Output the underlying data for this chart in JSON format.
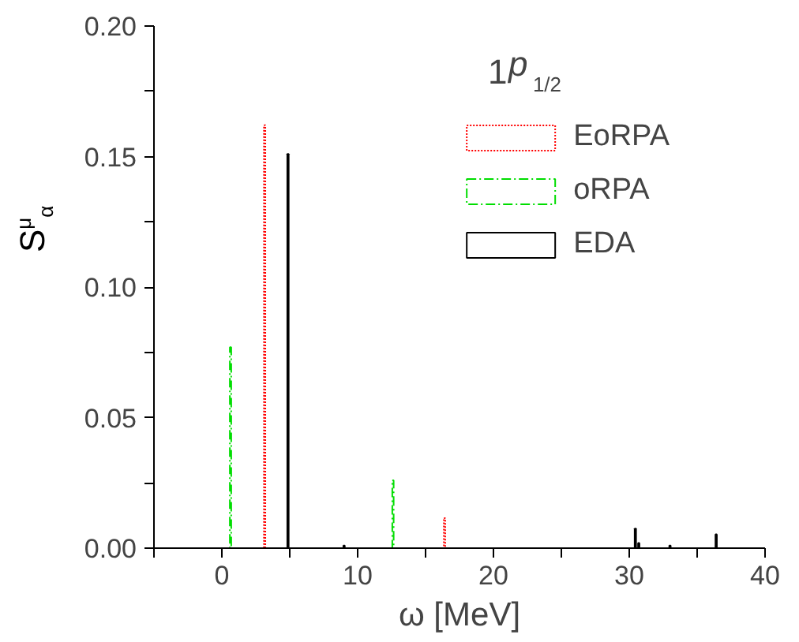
{
  "chart_data": {
    "type": "bar",
    "title": "1p$_{1/2}$",
    "xlabel": "ω [MeV]",
    "ylabel": "S$^{μ}$$_{α}$",
    "xlim": [
      -5,
      40
    ],
    "ylim": [
      0,
      0.2
    ],
    "xticks": [
      {
        "value": -5,
        "label": null
      },
      0,
      {
        "value": 5,
        "label": null
      },
      10,
      {
        "value": 15,
        "label": null
      },
      20,
      {
        "value": 25,
        "label": null
      },
      30,
      {
        "value": 35,
        "label": null
      },
      40
    ],
    "yticks": [
      {
        "value": 0,
        "label": "0.00"
      },
      {
        "value": 0.025,
        "label": null
      },
      0.05,
      {
        "value": 0.075,
        "label": null
      },
      {
        "value": 0.1,
        "label": "0.10"
      },
      {
        "value": 0.125,
        "label": null
      },
      0.15,
      {
        "value": 0.175,
        "label": null
      },
      {
        "value": 0.2,
        "label": "0.20"
      }
    ],
    "legend": "top right",
    "grid": false,
    "series": [
      {
        "name": "EoRPA",
        "color": "#ff0000",
        "line_style": "dotted",
        "x": [
          3.15,
          16.4
        ],
        "values": [
          0.162,
          0.0115
        ]
      },
      {
        "name": "oRPA",
        "color": "#00dd00",
        "line_style": "dashdot",
        "x": [
          0.64,
          12.6
        ],
        "values": [
          0.077,
          0.026
        ]
      },
      {
        "name": "EDA",
        "color": "#000000",
        "line_style": "solid",
        "x": [
          4.87,
          9.0,
          30.45,
          30.7,
          33.0,
          36.4
        ],
        "values": [
          0.151,
          0.001,
          0.0075,
          0.002,
          0.001,
          0.0053
        ]
      }
    ]
  }
}
